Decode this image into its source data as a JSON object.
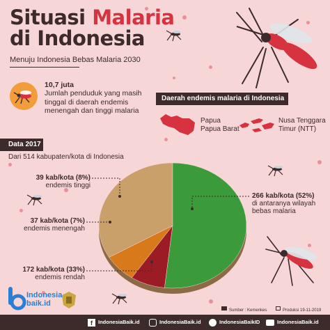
{
  "title": {
    "part1": "Situasi ",
    "highlight": "Malaria",
    "part2": "di Indonesia"
  },
  "subtitle": "Menuju Indonesia Bebas Malaria 2030",
  "stat": {
    "value": "10,7 juta",
    "description": "Jumlah penduduk yang masih tinggal di daerah endemis menengah dan tinggi malaria"
  },
  "endemic": {
    "heading": "Daerah endemis malaria di Indonesia",
    "regions": [
      {
        "line1": "Papua",
        "line2": "Papua Barat"
      },
      {
        "line1": "Nusa Tenggara",
        "line2": "Timur (NTT)"
      }
    ]
  },
  "data_year": "Data 2017",
  "data_sub": "Dari 514 kabupaten/kota di Indonesia",
  "colors": {
    "high": "#9b1c24",
    "medium": "#d87a1c",
    "low": "#c9a06a",
    "free": "#3b9a3a",
    "accent": "#d6323f",
    "dark": "#3d2b2b"
  },
  "chart_data": {
    "type": "pie",
    "slices": [
      {
        "label": "39 kab/kota (8%)",
        "category": "endemis tinggi",
        "value": 39,
        "percent": 8
      },
      {
        "label": "37 kab/kota (7%)",
        "category": "endemis menengah",
        "value": 37,
        "percent": 7
      },
      {
        "label": "172 kab/kota (33%)",
        "category": "endemis rendah",
        "value": 172,
        "percent": 33
      },
      {
        "label": "266 kab/kota (52%)",
        "category": "di antaranya wilayah bebas malaria",
        "value": 266,
        "percent": 52
      }
    ]
  },
  "labels": {
    "high": {
      "line1": "39 kab/kota (8%)",
      "line2": "endemis tinggi"
    },
    "medium": {
      "line1": "37 kab/kota (7%)",
      "line2": "endemis menengah"
    },
    "low": {
      "line1": "172 kab/kota (33%)",
      "line2": "endemis rendah"
    },
    "free": {
      "line1": "266 kab/kota (52%)",
      "line2": "di antaranya wilayah",
      "line3": "bebas malaria"
    }
  },
  "footer": {
    "logo_line1": "Indonesia",
    "logo_line2": "baik.id",
    "source": "Sumber : Kemenkes",
    "production": "Produksi 19-11-2019",
    "facebook": "IndonesiaBaik.id",
    "instagram": "IndonesiaBaik.id",
    "twitter": "IndonesiaBaikID",
    "youtube": "IndonesiaBaik.id"
  }
}
